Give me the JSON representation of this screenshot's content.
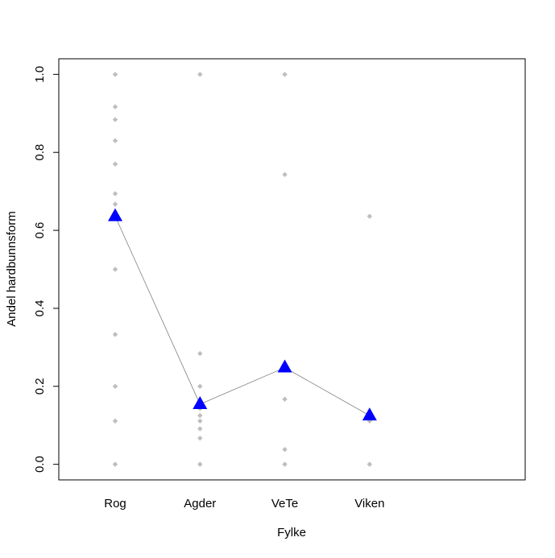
{
  "chart_data": {
    "type": "strip",
    "x_label": "Fylke",
    "y_label": "Andel hardbunnsform",
    "categories": [
      "Rog",
      "Agder",
      "VeTe",
      "Viken"
    ],
    "points": [
      [
        1.0,
        0.917,
        0.884,
        0.83,
        0.77,
        0.694,
        0.667,
        0.5,
        0.333,
        0.2,
        0.111,
        0.0
      ],
      [
        1.0,
        0.284,
        0.2,
        0.143,
        0.125,
        0.111,
        0.091,
        0.067,
        0.0
      ],
      [
        1.0,
        0.743,
        0.167,
        0.038,
        0.0
      ],
      [
        0.636,
        0.111,
        0.0
      ]
    ],
    "means": [
      0.636,
      0.154,
      0.248,
      0.125
    ],
    "point_color": "#bebebe",
    "mean_color": "#0000ff",
    "line_color": "#808080",
    "ylim": [
      -0.04,
      1.04
    ],
    "yticks": [
      {
        "value": 0,
        "label": "0.0"
      },
      0.2,
      0.4,
      0.6,
      0.8,
      {
        "value": 1,
        "label": "1.0"
      }
    ]
  }
}
